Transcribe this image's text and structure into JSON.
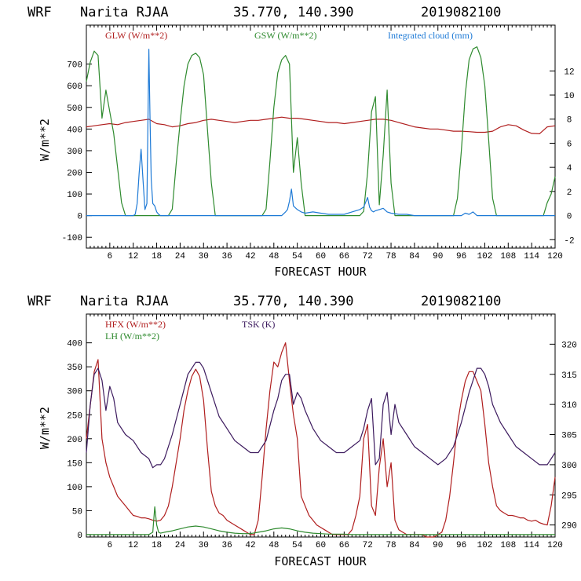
{
  "charts": [
    {
      "header": {
        "model": "WRF",
        "site": "Narita RJAA",
        "coords": "35.770, 140.390",
        "init": "2019082100"
      },
      "xlabel": "FORECAST HOUR",
      "ylabel": "W/m**2",
      "legend": [
        {
          "label": "GLW (W/m**2)",
          "color": "#b01e1e"
        },
        {
          "label": "GSW (W/m**2)",
          "color": "#2e8a2e"
        },
        {
          "label": "Integrated cloud (mm)",
          "color": "#1e7ad6"
        }
      ]
    },
    {
      "header": {
        "model": "WRF",
        "site": "Narita RJAA",
        "coords": "35.770, 140.390",
        "init": "2019082100"
      },
      "xlabel": "FORECAST HOUR",
      "ylabel": "W/m**2",
      "legend": [
        {
          "label": "HFX (W/m**2)",
          "color": "#b01e1e"
        },
        {
          "label": "LH  (W/m**2)",
          "color": "#2e8a2e"
        },
        {
          "label": "TSK (K)",
          "color": "#3c1a5e"
        }
      ]
    }
  ],
  "chart_data": [
    {
      "type": "line",
      "title": "WRF Narita RJAA 35.770, 140.390 2019082100",
      "xlabel": "FORECAST HOUR",
      "ylabel": "W/m**2",
      "xlim": [
        0,
        120
      ],
      "ylim": [
        -150,
        880
      ],
      "y2lim": [
        -2.7,
        15.8
      ],
      "xticks": [
        6,
        12,
        18,
        24,
        30,
        36,
        42,
        48,
        54,
        60,
        66,
        72,
        78,
        84,
        90,
        96,
        102,
        108,
        114,
        120
      ],
      "yticks": [
        -100,
        0,
        100,
        200,
        300,
        400,
        500,
        600,
        700
      ],
      "y2ticks": [
        -2,
        0,
        2,
        4,
        6,
        8,
        10,
        12
      ],
      "series": [
        {
          "name": "GLW (W/m**2)",
          "color": "#b01e1e",
          "axis": "left",
          "x": [
            0,
            2,
            4,
            6,
            8,
            10,
            12,
            14,
            16,
            18,
            20,
            22,
            24,
            26,
            28,
            30,
            32,
            34,
            36,
            38,
            40,
            42,
            44,
            46,
            48,
            50,
            52,
            54,
            56,
            58,
            60,
            62,
            64,
            66,
            68,
            70,
            72,
            74,
            76,
            78,
            80,
            82,
            84,
            86,
            88,
            90,
            92,
            94,
            96,
            98,
            100,
            102,
            104,
            106,
            108,
            110,
            112,
            114,
            116,
            118,
            120
          ],
          "y": [
            410,
            415,
            420,
            425,
            420,
            430,
            435,
            440,
            445,
            425,
            420,
            410,
            415,
            425,
            430,
            440,
            445,
            440,
            435,
            430,
            435,
            440,
            440,
            445,
            450,
            455,
            450,
            450,
            445,
            440,
            435,
            430,
            430,
            425,
            430,
            435,
            440,
            445,
            445,
            440,
            430,
            420,
            410,
            405,
            400,
            400,
            395,
            390,
            390,
            388,
            385,
            385,
            390,
            410,
            420,
            415,
            395,
            380,
            378,
            410,
            415
          ]
        },
        {
          "name": "GSW (W/m**2)",
          "color": "#2e8a2e",
          "axis": "left",
          "x": [
            0,
            1,
            2,
            3,
            4,
            5,
            6,
            7,
            8,
            9,
            10,
            11,
            12,
            13,
            14,
            15,
            16,
            17,
            18,
            19,
            20,
            21,
            22,
            23,
            24,
            25,
            26,
            27,
            28,
            29,
            30,
            31,
            32,
            33,
            34,
            35,
            36,
            37,
            38,
            39,
            40,
            41,
            42,
            43,
            44,
            45,
            46,
            47,
            48,
            49,
            50,
            51,
            52,
            53,
            54,
            55,
            56,
            57,
            58,
            59,
            60,
            61,
            62,
            63,
            64,
            65,
            66,
            67,
            68,
            69,
            70,
            71,
            72,
            73,
            74,
            75,
            76,
            77,
            78,
            79,
            80,
            81,
            82,
            83,
            84,
            85,
            86,
            87,
            88,
            89,
            90,
            91,
            92,
            93,
            94,
            95,
            96,
            97,
            98,
            99,
            100,
            101,
            102,
            103,
            104,
            105,
            106,
            107,
            108,
            109,
            110,
            111,
            112,
            113,
            114,
            115,
            116,
            117,
            118,
            119,
            120
          ],
          "y": [
            620,
            710,
            760,
            740,
            450,
            580,
            480,
            380,
            220,
            60,
            0,
            0,
            0,
            0,
            0,
            0,
            0,
            0,
            0,
            0,
            0,
            0,
            30,
            240,
            430,
            600,
            700,
            740,
            750,
            730,
            650,
            400,
            150,
            0,
            0,
            0,
            0,
            0,
            0,
            0,
            0,
            0,
            0,
            0,
            0,
            0,
            30,
            250,
            500,
            660,
            720,
            740,
            700,
            200,
            360,
            150,
            0,
            0,
            0,
            0,
            0,
            0,
            0,
            0,
            0,
            0,
            0,
            0,
            0,
            0,
            0,
            20,
            200,
            480,
            550,
            50,
            280,
            580,
            150,
            0,
            0,
            0,
            0,
            0,
            0,
            0,
            0,
            0,
            0,
            0,
            0,
            0,
            0,
            0,
            0,
            80,
            300,
            560,
            720,
            770,
            780,
            730,
            600,
            350,
            80,
            0,
            0,
            0,
            0,
            0,
            0,
            0,
            0,
            0,
            0,
            0,
            0,
            0,
            60,
            100,
            180
          ]
        },
        {
          "name": "Integrated cloud (mm)",
          "color": "#1e7ad6",
          "axis": "right",
          "x": [
            0,
            12,
            12.5,
            13,
            13.5,
            14,
            14.5,
            15,
            15.5,
            16,
            16.3,
            16.6,
            17,
            17.5,
            18,
            18.5,
            19,
            20,
            50,
            51,
            51.5,
            52,
            52.5,
            53,
            54,
            55,
            56,
            58,
            60,
            62,
            66,
            68,
            70,
            71,
            72,
            72.5,
            73,
            73.5,
            74,
            75,
            76,
            77,
            78,
            80,
            82,
            84,
            90,
            96,
            97,
            98,
            99,
            100,
            110,
            120
          ],
          "y": [
            0,
            0,
            0.1,
            1,
            3.5,
            5.5,
            3,
            0.5,
            1,
            13.8,
            8,
            3,
            1,
            0.8,
            0.3,
            0.1,
            0,
            0,
            0,
            0.3,
            0.5,
            1.2,
            2.2,
            0.8,
            0.5,
            0.3,
            0.2,
            0.3,
            0.2,
            0.1,
            0.1,
            0.3,
            0.5,
            0.7,
            1.5,
            0.7,
            0.4,
            0.3,
            0.4,
            0.5,
            0.6,
            0.3,
            0.2,
            0.1,
            0.1,
            0,
            0,
            0,
            0.2,
            0.1,
            0.3,
            0,
            0,
            0
          ]
        }
      ]
    },
    {
      "type": "line",
      "title": "WRF Narita RJAA 35.770, 140.390 2019082100",
      "xlabel": "FORECAST HOUR",
      "ylabel": "W/m**2",
      "xlim": [
        0,
        120
      ],
      "ylim": [
        -5,
        460
      ],
      "y2lim": [
        288,
        325
      ],
      "xticks": [
        6,
        12,
        18,
        24,
        30,
        36,
        42,
        48,
        54,
        60,
        66,
        72,
        78,
        84,
        90,
        96,
        102,
        108,
        114,
        120
      ],
      "yticks": [
        0,
        50,
        100,
        150,
        200,
        250,
        300,
        350,
        400
      ],
      "y2ticks": [
        290,
        295,
        300,
        305,
        310,
        315,
        320
      ],
      "series": [
        {
          "name": "HFX (W/m**2)",
          "color": "#b01e1e",
          "axis": "left",
          "x": [
            0,
            1,
            2,
            3,
            4,
            5,
            6,
            7,
            8,
            9,
            10,
            11,
            12,
            13,
            14,
            15,
            16,
            17,
            18,
            19,
            20,
            21,
            22,
            23,
            24,
            25,
            26,
            27,
            28,
            29,
            30,
            31,
            32,
            33,
            34,
            35,
            36,
            37,
            38,
            39,
            40,
            41,
            42,
            43,
            44,
            45,
            46,
            47,
            48,
            49,
            50,
            51,
            52,
            53,
            54,
            55,
            56,
            57,
            58,
            59,
            60,
            61,
            62,
            63,
            64,
            65,
            66,
            67,
            68,
            69,
            70,
            71,
            72,
            73,
            74,
            75,
            76,
            77,
            78,
            79,
            80,
            81,
            82,
            83,
            84,
            85,
            86,
            87,
            88,
            89,
            90,
            91,
            92,
            93,
            94,
            95,
            96,
            97,
            98,
            99,
            100,
            101,
            102,
            103,
            104,
            105,
            106,
            107,
            108,
            109,
            110,
            111,
            112,
            113,
            114,
            115,
            116,
            117,
            118,
            119,
            120
          ],
          "y": [
            200,
            270,
            340,
            365,
            200,
            150,
            120,
            100,
            80,
            70,
            60,
            50,
            40,
            38,
            35,
            35,
            33,
            30,
            28,
            30,
            40,
            60,
            100,
            150,
            200,
            260,
            300,
            330,
            345,
            330,
            280,
            180,
            90,
            60,
            45,
            40,
            30,
            25,
            20,
            15,
            10,
            5,
            0,
            0,
            30,
            120,
            220,
            300,
            360,
            350,
            380,
            400,
            320,
            250,
            200,
            80,
            60,
            40,
            30,
            20,
            15,
            10,
            5,
            0,
            0,
            0,
            0,
            0,
            10,
            40,
            80,
            200,
            230,
            60,
            40,
            140,
            200,
            100,
            150,
            30,
            10,
            5,
            0,
            0,
            0,
            0,
            0,
            -5,
            -5,
            -5,
            0,
            5,
            30,
            80,
            150,
            230,
            280,
            320,
            340,
            340,
            320,
            300,
            230,
            150,
            100,
            60,
            50,
            45,
            40,
            40,
            38,
            35,
            35,
            30,
            28,
            30,
            25,
            22,
            20,
            60,
            120
          ]
        },
        {
          "name": "LH  (W/m**2)",
          "color": "#2e8a2e",
          "axis": "left",
          "x": [
            0,
            2,
            4,
            6,
            8,
            10,
            12,
            14,
            16,
            17,
            17.5,
            18,
            18.5,
            19,
            20,
            22,
            24,
            26,
            28,
            30,
            32,
            34,
            36,
            38,
            40,
            42,
            44,
            46,
            48,
            50,
            52,
            54,
            56,
            58,
            60,
            62,
            64,
            66,
            68,
            70,
            72,
            74,
            76,
            78,
            80,
            82,
            84,
            90,
            96,
            100,
            102,
            104,
            108,
            114,
            120
          ],
          "y": [
            0,
            0,
            0,
            0,
            0,
            0,
            0,
            0,
            0,
            5,
            58,
            20,
            5,
            3,
            5,
            8,
            12,
            16,
            18,
            16,
            12,
            8,
            5,
            3,
            2,
            2,
            5,
            8,
            12,
            14,
            12,
            8,
            5,
            3,
            2,
            1,
            1,
            1,
            0,
            0,
            0,
            0,
            0,
            0,
            0,
            0,
            0,
            0,
            0,
            0,
            0,
            0,
            0,
            0,
            0
          ]
        },
        {
          "name": "TSK (K)",
          "color": "#3c1a5e",
          "axis": "right",
          "x": [
            0,
            1,
            2,
            3,
            4,
            5,
            6,
            7,
            8,
            10,
            12,
            14,
            16,
            17,
            18,
            19,
            20,
            22,
            24,
            26,
            27,
            28,
            29,
            30,
            32,
            34,
            36,
            38,
            40,
            42,
            44,
            46,
            48,
            49,
            50,
            51,
            52,
            53,
            54,
            55,
            56,
            58,
            60,
            62,
            64,
            66,
            68,
            70,
            71,
            72,
            73,
            74,
            75,
            76,
            77,
            78,
            79,
            80,
            82,
            84,
            86,
            88,
            90,
            92,
            94,
            96,
            98,
            99,
            100,
            101,
            102,
            103,
            104,
            106,
            108,
            110,
            112,
            114,
            116,
            118,
            120
          ],
          "y": [
            302,
            310,
            315,
            316,
            314,
            309,
            313,
            311,
            307,
            305,
            304,
            302,
            301,
            299.5,
            300,
            300,
            301,
            305,
            310,
            315,
            316,
            317,
            317,
            316,
            312,
            308,
            306,
            304,
            303,
            302,
            302,
            304,
            309,
            311,
            314,
            315,
            315,
            310,
            312,
            311,
            309,
            306,
            304,
            303,
            302,
            302,
            303,
            304,
            306,
            309,
            311,
            300,
            301,
            310,
            312,
            305,
            310,
            307,
            305,
            303,
            302,
            301,
            300,
            301,
            303,
            307,
            312,
            314,
            316,
            316,
            315,
            313,
            310,
            307,
            305,
            303,
            302,
            301,
            300,
            300,
            302
          ]
        }
      ]
    }
  ]
}
